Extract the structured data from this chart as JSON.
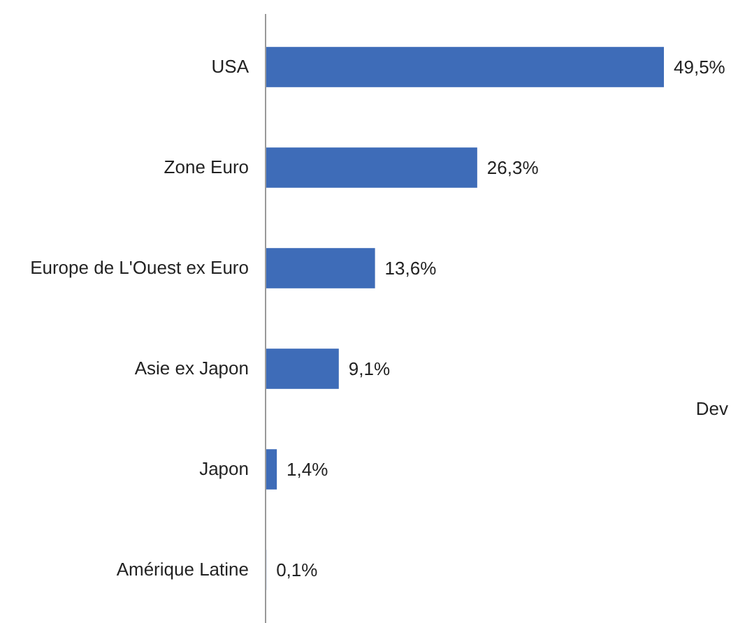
{
  "chart_data": {
    "type": "bar",
    "orientation": "horizontal",
    "categories": [
      "USA",
      "Zone Euro",
      "Europe de L'Ouest ex Euro",
      "Asie ex Japon",
      "Japon",
      "Amérique Latine"
    ],
    "values": [
      49.5,
      26.3,
      13.6,
      9.1,
      1.4,
      0.1
    ],
    "value_labels": [
      "49,5%",
      "26,3%",
      "13,6%",
      "9,1%",
      "1,4%",
      "0,1%"
    ],
    "color": "#3e6cb8",
    "annotations": [
      "Dev"
    ]
  }
}
